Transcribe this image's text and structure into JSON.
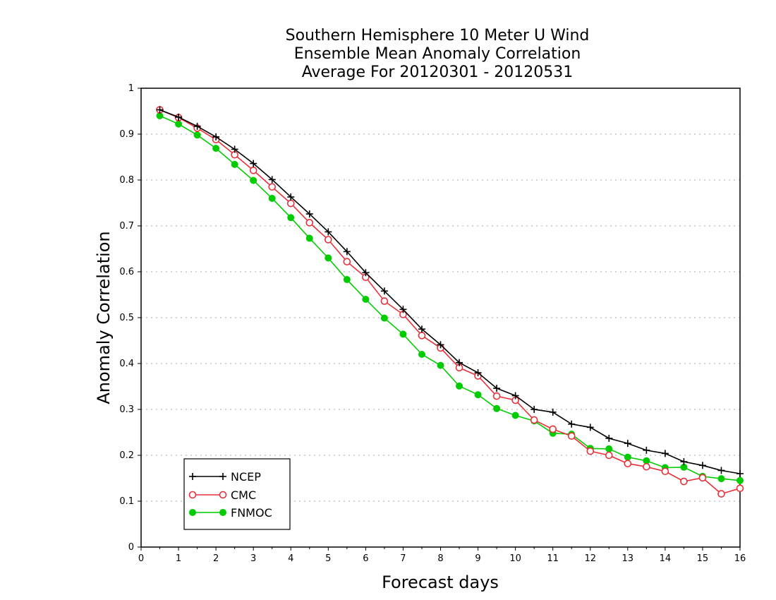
{
  "chart_data": {
    "type": "line",
    "title_lines": [
      "Southern Hemisphere 10 Meter U Wind",
      "Ensemble Mean Anomaly Correlation",
      "Average For 20120301 - 20120531"
    ],
    "xlabel": "Forecast days",
    "ylabel": "Anomaly Correlation",
    "xlim": [
      0,
      16
    ],
    "ylim": [
      0,
      1
    ],
    "x_ticks": [
      "0",
      "1",
      "2",
      "3",
      "4",
      "5",
      "6",
      "7",
      "8",
      "9",
      "10",
      "11",
      "12",
      "13",
      "14",
      "15",
      "16"
    ],
    "y_ticks": [
      "0",
      "0.1",
      "0.2",
      "0.3",
      "0.4",
      "0.5",
      "0.6",
      "0.7",
      "0.8",
      "0.9",
      "1"
    ],
    "grid": "horizontal dotted",
    "legend_position": "bottom-left",
    "x": [
      0.5,
      1,
      1.5,
      2,
      2.5,
      3,
      3.5,
      4,
      4.5,
      5,
      5.5,
      6,
      6.5,
      7,
      7.5,
      8,
      8.5,
      9,
      9.5,
      10,
      10.5,
      11,
      11.5,
      12,
      12.5,
      13,
      13.5,
      14,
      14.5,
      15,
      15.5,
      16
    ],
    "series": [
      {
        "name": "NCEP",
        "color": "#000000",
        "marker": "plus",
        "values": [
          0.953,
          0.937,
          0.917,
          0.894,
          0.867,
          0.836,
          0.801,
          0.763,
          0.726,
          0.687,
          0.644,
          0.598,
          0.558,
          0.518,
          0.475,
          0.441,
          0.402,
          0.38,
          0.346,
          0.33,
          0.3,
          0.294,
          0.268,
          0.261,
          0.237,
          0.226,
          0.211,
          0.204,
          0.186,
          0.178,
          0.167,
          0.16
        ]
      },
      {
        "name": "CMC",
        "color": "#e8303a",
        "marker": "open-circle",
        "values": [
          0.953,
          0.936,
          0.913,
          0.888,
          0.855,
          0.821,
          0.785,
          0.749,
          0.707,
          0.67,
          0.622,
          0.588,
          0.536,
          0.507,
          0.461,
          0.434,
          0.391,
          0.373,
          0.329,
          0.32,
          0.277,
          0.257,
          0.242,
          0.209,
          0.2,
          0.182,
          0.175,
          0.165,
          0.143,
          0.151,
          0.116,
          0.128
        ]
      },
      {
        "name": "FNMOC",
        "color": "#00cc00",
        "marker": "filled-circle",
        "values": [
          0.94,
          0.922,
          0.898,
          0.869,
          0.834,
          0.799,
          0.76,
          0.718,
          0.673,
          0.63,
          0.583,
          0.54,
          0.499,
          0.464,
          0.42,
          0.396,
          0.351,
          0.332,
          0.302,
          0.287,
          0.275,
          0.248,
          0.246,
          0.215,
          0.214,
          0.196,
          0.188,
          0.173,
          0.174,
          0.154,
          0.149,
          0.145
        ]
      }
    ]
  }
}
